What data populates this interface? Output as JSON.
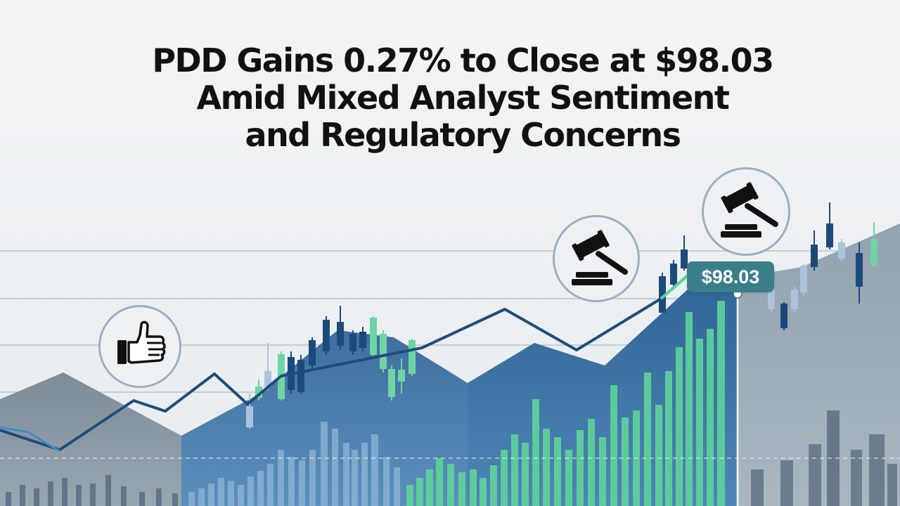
{
  "headline": {
    "line1": "PDD Gains 0.27% to Close at $98.03",
    "line2": "Amid Mixed Analyst Sentiment",
    "line3": "and Regulatory Concerns"
  },
  "price_tag": "$98.03",
  "icons": {
    "badge_left": "thumbs-up-icon",
    "badge_middle": "gavel-icon",
    "badge_right": "gavel-icon"
  },
  "colors": {
    "background": "#eef1f3",
    "trend_line": "#1f4d78",
    "candle_dark": "#1c4a7a",
    "candle_green": "#6fd3a6",
    "volume_green": "#5fd39a",
    "area_blue": "#4a7fb0",
    "area_gray": "#8496a6",
    "price_tag": "#3a7e8a"
  }
}
